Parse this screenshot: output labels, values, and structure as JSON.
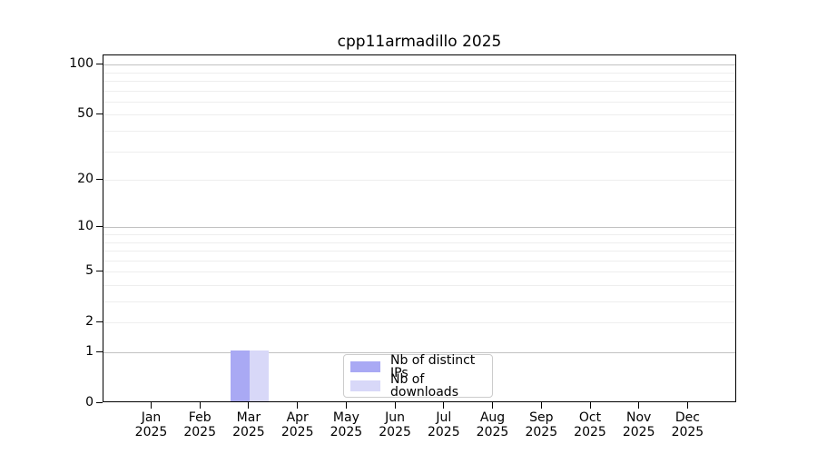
{
  "chart_data": {
    "type": "bar",
    "title": "cpp11armadillo 2025",
    "yscale": "log1p",
    "ylim": [
      0,
      110
    ],
    "grid": true,
    "legend_position": "lower center",
    "x": {
      "months": [
        "Jan",
        "Feb",
        "Mar",
        "Apr",
        "May",
        "Jun",
        "Jul",
        "Aug",
        "Sep",
        "Oct",
        "Nov",
        "Dec"
      ],
      "year": "2025"
    },
    "y_ticks": [
      {
        "value": 0,
        "label": "0"
      },
      {
        "value": 1,
        "label": "1"
      },
      {
        "value": 2,
        "label": "2"
      },
      {
        "value": 5,
        "label": "5"
      },
      {
        "value": 10,
        "label": "10"
      },
      {
        "value": 20,
        "label": "20"
      },
      {
        "value": 50,
        "label": "50"
      },
      {
        "value": 100,
        "label": "100"
      }
    ],
    "minor_gridlines": [
      3,
      4,
      6,
      7,
      8,
      9,
      30,
      40,
      60,
      70,
      80,
      90
    ],
    "major_gridline_values": [
      1,
      10,
      100
    ],
    "series": [
      {
        "name": "Nb of distinct IPs",
        "color": "#a9a9f4",
        "values": [
          0,
          0,
          1,
          0,
          0,
          0,
          0,
          0,
          0,
          0,
          0,
          0
        ]
      },
      {
        "name": "Nb of downloads",
        "color": "#d8d8f8",
        "values": [
          0,
          0,
          1,
          0,
          0,
          0,
          0,
          0,
          0,
          0,
          0,
          0
        ]
      }
    ]
  },
  "colors": {
    "major_grid": "#c2c2c2",
    "minor_grid": "#eeeeee",
    "spine": "#000000",
    "legend_border": "#cccccc"
  }
}
